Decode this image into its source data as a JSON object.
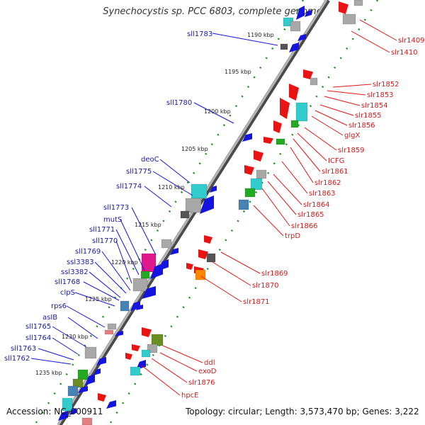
{
  "title": "Synechocystis sp. PCC 6803, complete genome",
  "footer": {
    "accession": "Accession: NC_000911",
    "topology": "Topology: circular; Length: 3,573,470 bp; Genes: 3,222"
  },
  "kbp_labels": [
    "1190 kbp",
    "1195 kbp",
    "1200 kbp",
    "1205 kbp",
    "1210 kbp",
    "1215 kbp",
    "1220 kbp",
    "1225 kbp",
    "1230 kbp",
    "1235 kbp"
  ],
  "left_genes": [
    "sll1783",
    "sll1780",
    "deoC",
    "sll1775",
    "sll1774",
    "sll1773",
    "mutS",
    "sll1771",
    "sll1770",
    "sll1769",
    "ssl3383",
    "ssl3382",
    "sll1768",
    "clpS",
    "rps6",
    "asIB",
    "sll1765",
    "sll1764",
    "sll1763",
    "sll1762"
  ],
  "right_genes": [
    "slr1409",
    "slr1410",
    "slr1852",
    "slr1853",
    "slr1854",
    "slr1855",
    "slr1856",
    "glgX",
    "slr1859",
    "ICFG",
    "slr1861",
    "slr1862",
    "slr1863",
    "slr1864",
    "slr1865",
    "slr1866",
    "trpD",
    "slr1869",
    "slr1870",
    "slr1871",
    "ddl",
    "exoD",
    "slr1876",
    "hpcE"
  ],
  "colors": {
    "backbone": "#8c8c8c",
    "minus_strand": "#1414e0",
    "plus_strand": "#e81414",
    "tick": "#1e8c1e",
    "grey_feature": "#a8a8a8",
    "cyan_feature": "#33cccc",
    "magenta_feature": "#e0188c",
    "green_feature": "#22aa22",
    "orange_feature": "#ff8800",
    "olive_feature": "#6b8e23",
    "steel_feature": "#4682b4"
  }
}
